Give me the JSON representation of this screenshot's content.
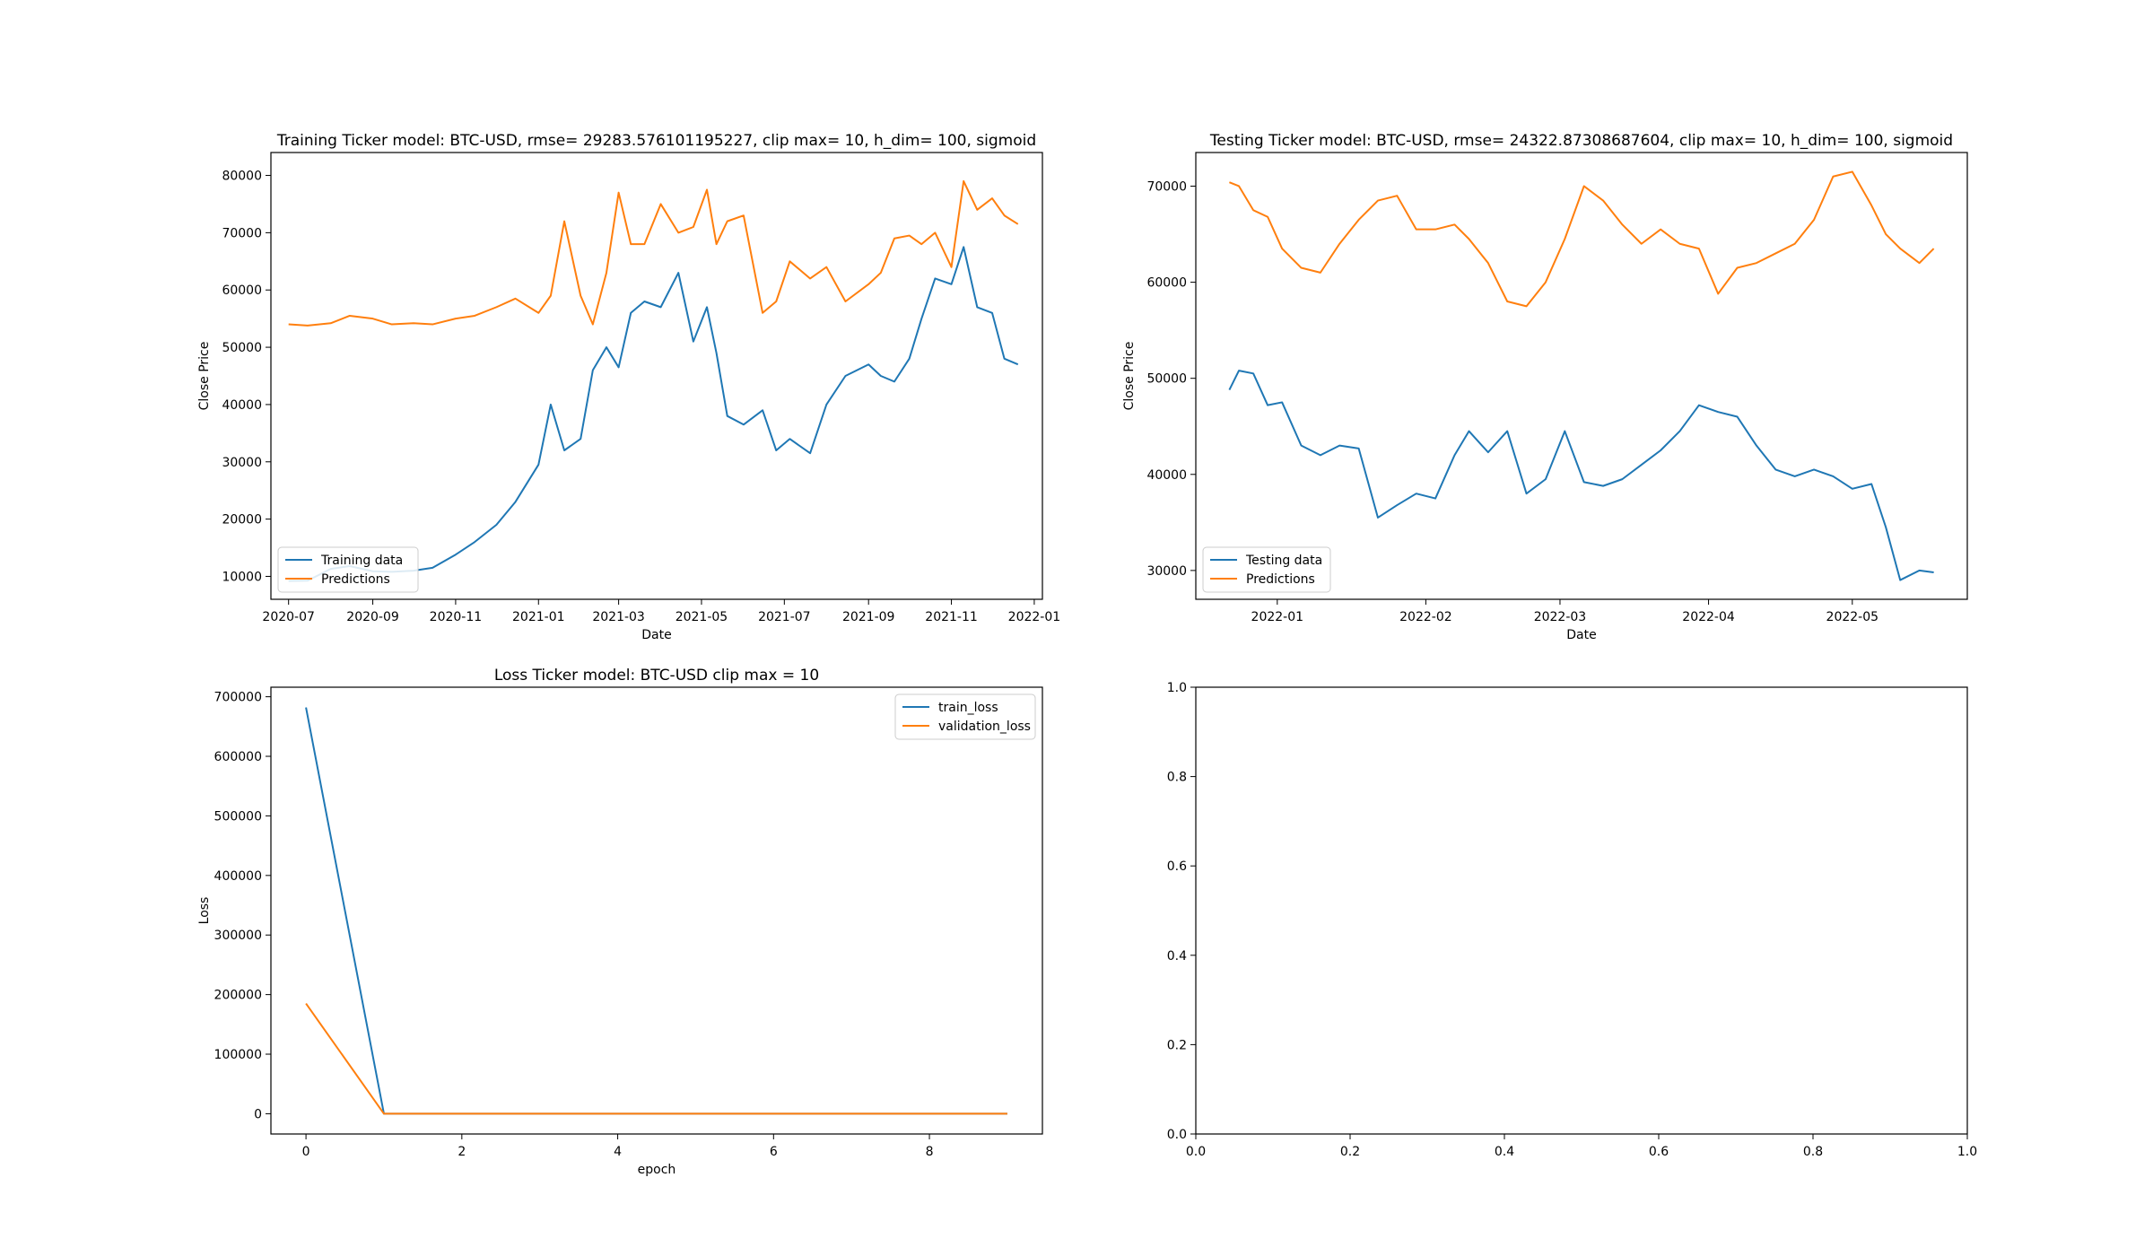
{
  "colors": {
    "series1": "#1f77b4",
    "series2": "#ff7f0e",
    "axis": "#000000",
    "legend_border": "#cccccc"
  },
  "chart_data": [
    {
      "type": "line",
      "title": "Training Ticker model: BTC-USD, rmse= 29283.576101195227, clip max= 10, h_dim= 100, sigmoid",
      "xlabel": "Date",
      "ylabel": "Close Price",
      "xlim": [
        "2020-06-18",
        "2022-01-07"
      ],
      "ylim": [
        6000,
        84000
      ],
      "x_ticks": [
        "2020-07-01",
        "2020-09-01",
        "2020-11-01",
        "2021-01-01",
        "2021-03-01",
        "2021-05-01",
        "2021-07-01",
        "2021-09-01",
        "2021-11-01",
        "2022-01-01"
      ],
      "x_tick_labels": [
        "2020-07",
        "2020-09",
        "2020-11",
        "2021-01",
        "2021-03",
        "2021-05",
        "2021-07",
        "2021-09",
        "2021-11",
        "2022-01"
      ],
      "y_ticks": [
        10000,
        20000,
        30000,
        40000,
        50000,
        60000,
        70000,
        80000
      ],
      "y_tick_labels": [
        "10000",
        "20000",
        "30000",
        "40000",
        "50000",
        "60000",
        "70000",
        "80000"
      ],
      "legend_position": "lower-left",
      "grid": false,
      "series": [
        {
          "name": "Training data",
          "color": "#1f77b4",
          "x": [
            "2020-07-01",
            "2020-07-15",
            "2020-08-01",
            "2020-08-15",
            "2020-09-01",
            "2020-09-15",
            "2020-10-01",
            "2020-10-15",
            "2020-11-01",
            "2020-11-15",
            "2020-12-01",
            "2020-12-15",
            "2021-01-01",
            "2021-01-10",
            "2021-01-20",
            "2021-02-01",
            "2021-02-10",
            "2021-02-20",
            "2021-03-01",
            "2021-03-10",
            "2021-03-20",
            "2021-04-01",
            "2021-04-14",
            "2021-04-25",
            "2021-05-05",
            "2021-05-12",
            "2021-05-20",
            "2021-06-01",
            "2021-06-15",
            "2021-06-25",
            "2021-07-05",
            "2021-07-20",
            "2021-08-01",
            "2021-08-15",
            "2021-09-01",
            "2021-09-10",
            "2021-09-20",
            "2021-10-01",
            "2021-10-10",
            "2021-10-20",
            "2021-11-01",
            "2021-11-10",
            "2021-11-20",
            "2021-12-01",
            "2021-12-10",
            "2021-12-20"
          ],
          "values": [
            9200,
            9250,
            11300,
            11800,
            10900,
            10800,
            11000,
            11500,
            13800,
            16000,
            19000,
            23000,
            29500,
            40000,
            32000,
            34000,
            46000,
            50000,
            46500,
            56000,
            58000,
            57000,
            63000,
            51000,
            57000,
            49000,
            38000,
            36500,
            39000,
            32000,
            34000,
            31500,
            40000,
            45000,
            47000,
            45000,
            44000,
            48000,
            55000,
            62000,
            61000,
            67500,
            57000,
            56000,
            48000,
            47000
          ]
        },
        {
          "name": "Predictions",
          "color": "#ff7f0e",
          "x": [
            "2020-07-01",
            "2020-07-15",
            "2020-08-01",
            "2020-08-15",
            "2020-09-01",
            "2020-09-15",
            "2020-10-01",
            "2020-10-15",
            "2020-11-01",
            "2020-11-15",
            "2020-12-01",
            "2020-12-15",
            "2021-01-01",
            "2021-01-10",
            "2021-01-20",
            "2021-02-01",
            "2021-02-10",
            "2021-02-20",
            "2021-03-01",
            "2021-03-10",
            "2021-03-20",
            "2021-04-01",
            "2021-04-14",
            "2021-04-25",
            "2021-05-05",
            "2021-05-12",
            "2021-05-20",
            "2021-06-01",
            "2021-06-15",
            "2021-06-25",
            "2021-07-05",
            "2021-07-20",
            "2021-08-01",
            "2021-08-15",
            "2021-09-01",
            "2021-09-10",
            "2021-09-20",
            "2021-10-01",
            "2021-10-10",
            "2021-10-20",
            "2021-11-01",
            "2021-11-10",
            "2021-11-20",
            "2021-12-01",
            "2021-12-10",
            "2021-12-20"
          ],
          "values": [
            54000,
            53800,
            54200,
            55500,
            55000,
            54000,
            54200,
            54000,
            55000,
            55500,
            57000,
            58500,
            56000,
            59000,
            72000,
            59000,
            54000,
            63000,
            77000,
            68000,
            68000,
            75000,
            70000,
            71000,
            77500,
            68000,
            72000,
            73000,
            56000,
            58000,
            65000,
            62000,
            64000,
            58000,
            61000,
            63000,
            69000,
            69500,
            68000,
            70000,
            64000,
            79000,
            74000,
            76000,
            73000,
            71500
          ]
        }
      ]
    },
    {
      "type": "line",
      "title": "Testing Ticker model: BTC-USD, rmse= 24322.87308687604, clip max= 10, h_dim= 100, sigmoid",
      "xlabel": "Date",
      "ylabel": "Close Price",
      "xlim": [
        "2021-12-15",
        "2022-05-25"
      ],
      "ylim": [
        27000,
        73500
      ],
      "x_ticks": [
        "2022-01-01",
        "2022-02-01",
        "2022-03-01",
        "2022-04-01",
        "2022-05-01"
      ],
      "x_tick_labels": [
        "2022-01",
        "2022-02",
        "2022-03",
        "2022-04",
        "2022-05"
      ],
      "y_ticks": [
        30000,
        40000,
        50000,
        60000,
        70000
      ],
      "y_tick_labels": [
        "30000",
        "40000",
        "50000",
        "60000",
        "70000"
      ],
      "legend_position": "lower-left",
      "grid": false,
      "series": [
        {
          "name": "Testing data",
          "color": "#1f77b4",
          "x": [
            "2021-12-22",
            "2021-12-24",
            "2021-12-27",
            "2021-12-30",
            "2022-01-02",
            "2022-01-06",
            "2022-01-10",
            "2022-01-14",
            "2022-01-18",
            "2022-01-22",
            "2022-01-26",
            "2022-01-30",
            "2022-02-03",
            "2022-02-07",
            "2022-02-10",
            "2022-02-14",
            "2022-02-18",
            "2022-02-22",
            "2022-02-26",
            "2022-03-02",
            "2022-03-06",
            "2022-03-10",
            "2022-03-14",
            "2022-03-18",
            "2022-03-22",
            "2022-03-26",
            "2022-03-30",
            "2022-04-03",
            "2022-04-07",
            "2022-04-11",
            "2022-04-15",
            "2022-04-19",
            "2022-04-23",
            "2022-04-27",
            "2022-05-01",
            "2022-05-05",
            "2022-05-08",
            "2022-05-11",
            "2022-05-15",
            "2022-05-18"
          ],
          "values": [
            48800,
            50800,
            50500,
            47200,
            47500,
            43000,
            42000,
            43000,
            42700,
            35500,
            36800,
            38000,
            37500,
            42000,
            44500,
            42300,
            44500,
            38000,
            39500,
            44500,
            39200,
            38800,
            39500,
            41000,
            42500,
            44500,
            47200,
            46500,
            46000,
            43000,
            40500,
            39800,
            40500,
            39800,
            38500,
            39000,
            34500,
            29000,
            30000,
            29800
          ]
        },
        {
          "name": "Predictions",
          "color": "#ff7f0e",
          "x": [
            "2021-12-22",
            "2021-12-24",
            "2021-12-27",
            "2021-12-30",
            "2022-01-02",
            "2022-01-06",
            "2022-01-10",
            "2022-01-14",
            "2022-01-18",
            "2022-01-22",
            "2022-01-26",
            "2022-01-30",
            "2022-02-03",
            "2022-02-07",
            "2022-02-10",
            "2022-02-14",
            "2022-02-18",
            "2022-02-22",
            "2022-02-26",
            "2022-03-02",
            "2022-03-06",
            "2022-03-10",
            "2022-03-14",
            "2022-03-18",
            "2022-03-22",
            "2022-03-26",
            "2022-03-30",
            "2022-04-03",
            "2022-04-07",
            "2022-04-11",
            "2022-04-15",
            "2022-04-19",
            "2022-04-23",
            "2022-04-27",
            "2022-05-01",
            "2022-05-05",
            "2022-05-08",
            "2022-05-11",
            "2022-05-15",
            "2022-05-18"
          ],
          "values": [
            70400,
            70000,
            67500,
            66800,
            63500,
            61500,
            61000,
            64000,
            66500,
            68500,
            69000,
            65500,
            65500,
            66000,
            64500,
            62000,
            58000,
            57500,
            60000,
            64500,
            70000,
            68500,
            66000,
            64000,
            65500,
            64000,
            63500,
            58800,
            61500,
            62000,
            63000,
            64000,
            66500,
            71000,
            71500,
            68000,
            65000,
            63500,
            62000,
            63500
          ]
        }
      ]
    },
    {
      "type": "line",
      "title": "Loss Ticker model: BTC-USD clip max = 10",
      "xlabel": "epoch",
      "ylabel": "Loss",
      "xlim": [
        -0.45,
        9.45
      ],
      "ylim": [
        -34000,
        716000
      ],
      "x_ticks": [
        0,
        2,
        4,
        6,
        8
      ],
      "x_tick_labels": [
        "0",
        "2",
        "4",
        "6",
        "8"
      ],
      "y_ticks": [
        0,
        100000,
        200000,
        300000,
        400000,
        500000,
        600000,
        700000
      ],
      "y_tick_labels": [
        "0",
        "100000",
        "200000",
        "300000",
        "400000",
        "500000",
        "600000",
        "700000"
      ],
      "legend_position": "upper-right",
      "grid": false,
      "series": [
        {
          "name": "train_loss",
          "color": "#1f77b4",
          "x": [
            0,
            1,
            2,
            3,
            4,
            5,
            6,
            7,
            8,
            9
          ],
          "values": [
            682000,
            0,
            0,
            0,
            0,
            0,
            0,
            0,
            0,
            0
          ]
        },
        {
          "name": "validation_loss",
          "color": "#ff7f0e",
          "x": [
            0,
            1,
            2,
            3,
            4,
            5,
            6,
            7,
            8,
            9
          ],
          "values": [
            185000,
            0,
            0,
            0,
            0,
            0,
            0,
            0,
            0,
            0
          ]
        }
      ]
    },
    {
      "type": "line",
      "title": "",
      "xlabel": "",
      "ylabel": "",
      "xlim": [
        0,
        1
      ],
      "ylim": [
        0,
        1
      ],
      "x_ticks": [
        0,
        0.2,
        0.4,
        0.6,
        0.8,
        1.0
      ],
      "x_tick_labels": [
        "0.0",
        "0.2",
        "0.4",
        "0.6",
        "0.8",
        "1.0"
      ],
      "y_ticks": [
        0,
        0.2,
        0.4,
        0.6,
        0.8,
        1.0
      ],
      "y_tick_labels": [
        "0.0",
        "0.2",
        "0.4",
        "0.6",
        "0.8",
        "1.0"
      ],
      "legend_position": "none",
      "grid": false,
      "series": []
    }
  ]
}
